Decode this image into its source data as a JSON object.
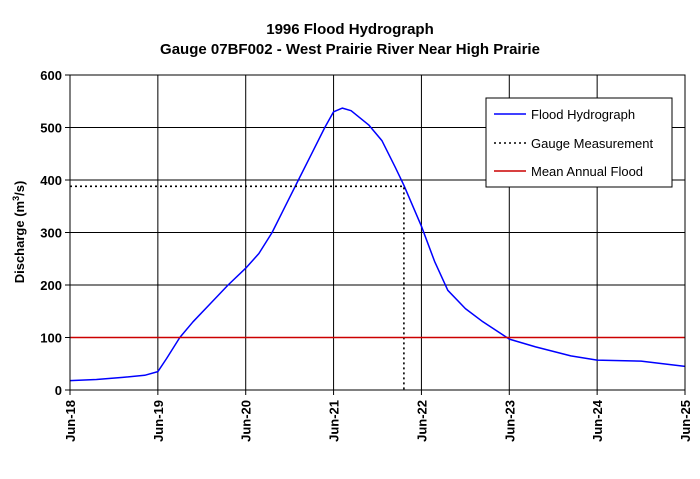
{
  "chart_data": {
    "type": "line",
    "title": "1996 Flood Hydrograph",
    "subtitle": "Gauge 07BF002 - West Prairie River Near High Prairie",
    "ylabel": "Discharge (m³/s)",
    "ylabel_parts": {
      "main": "Discharge (m",
      "sup": "3",
      "tail": "/s)"
    },
    "xlabel": "",
    "x_tick_labels": [
      "Jun-18",
      "Jun-19",
      "Jun-20",
      "Jun-21",
      "Jun-22",
      "Jun-23",
      "Jun-24",
      "Jun-25"
    ],
    "y_tick_labels": [
      "0",
      "100",
      "200",
      "300",
      "400",
      "500",
      "600"
    ],
    "xlim": [
      18,
      25
    ],
    "ylim": [
      0,
      600
    ],
    "grid": true,
    "legend_position": "top-right",
    "series": [
      {
        "name": "Flood Hydrograph",
        "color": "#0000ff",
        "style": "solid",
        "points": [
          [
            18.0,
            18
          ],
          [
            18.3,
            20
          ],
          [
            18.6,
            24
          ],
          [
            18.85,
            28
          ],
          [
            19.0,
            35
          ],
          [
            19.1,
            60
          ],
          [
            19.25,
            100
          ],
          [
            19.4,
            130
          ],
          [
            19.6,
            165
          ],
          [
            19.8,
            200
          ],
          [
            20.0,
            232
          ],
          [
            20.15,
            260
          ],
          [
            20.3,
            300
          ],
          [
            20.45,
            350
          ],
          [
            20.6,
            400
          ],
          [
            20.75,
            450
          ],
          [
            20.9,
            500
          ],
          [
            21.0,
            530
          ],
          [
            21.1,
            537
          ],
          [
            21.2,
            532
          ],
          [
            21.4,
            505
          ],
          [
            21.55,
            475
          ],
          [
            21.7,
            425
          ],
          [
            21.8,
            390
          ],
          [
            22.0,
            312
          ],
          [
            22.15,
            245
          ],
          [
            22.3,
            190
          ],
          [
            22.5,
            155
          ],
          [
            22.7,
            130
          ],
          [
            23.0,
            97
          ],
          [
            23.3,
            82
          ],
          [
            23.7,
            65
          ],
          [
            24.0,
            57
          ],
          [
            24.5,
            55
          ],
          [
            25.0,
            45
          ]
        ]
      },
      {
        "name": "Gauge Measurement",
        "color": "#000000",
        "style": "dotted",
        "points": [
          [
            18.0,
            388
          ],
          [
            21.8,
            388
          ],
          [
            21.8,
            0
          ]
        ]
      },
      {
        "name": "Mean Annual Flood",
        "color": "#cc0000",
        "style": "solid",
        "points": [
          [
            18.0,
            100
          ],
          [
            25.0,
            100
          ]
        ]
      }
    ]
  }
}
